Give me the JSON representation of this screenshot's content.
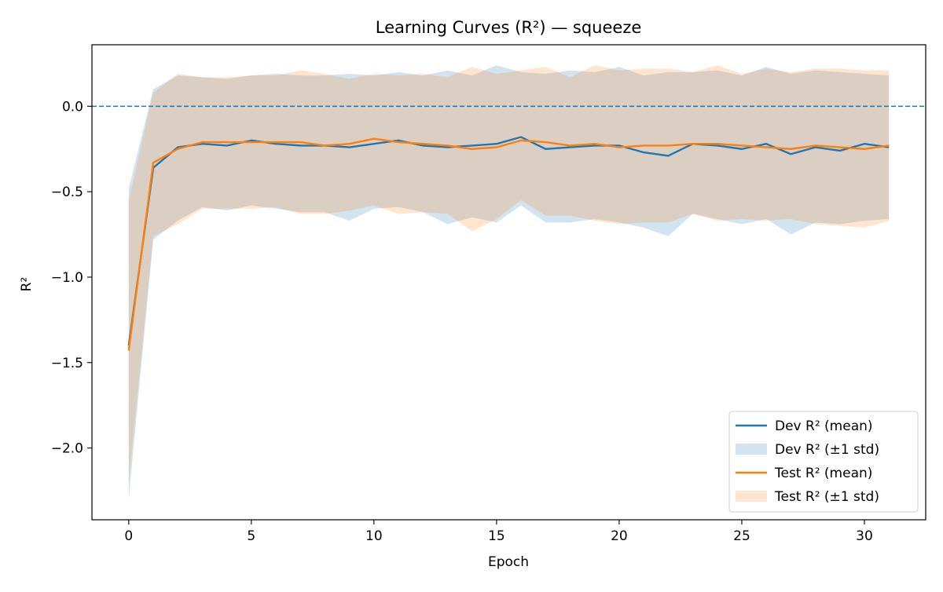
{
  "chart_data": {
    "type": "line",
    "title": "Learning Curves (R²) — squeeze",
    "xlabel": "Epoch",
    "ylabel": "R²",
    "xlim": [
      -1.5,
      32.5
    ],
    "ylim": [
      -2.42,
      0.36
    ],
    "x_ticks": [
      0,
      5,
      10,
      15,
      20,
      25,
      30
    ],
    "x_tick_labels": [
      "0",
      "5",
      "10",
      "15",
      "20",
      "25",
      "30"
    ],
    "y_ticks": [
      0.0,
      -0.5,
      -1.0,
      -1.5,
      -2.0
    ],
    "y_tick_labels": [
      "0.0",
      "−0.5",
      "−1.0",
      "−1.5",
      "−2.0"
    ],
    "reference_line": {
      "y": 0.0,
      "style": "dashed",
      "color": "#1f77b4"
    },
    "grid": false,
    "legend_position": "lower-right",
    "x": [
      0,
      1,
      2,
      3,
      4,
      5,
      6,
      7,
      8,
      9,
      10,
      11,
      12,
      13,
      14,
      15,
      16,
      17,
      18,
      19,
      20,
      21,
      22,
      23,
      24,
      25,
      26,
      27,
      28,
      29,
      30,
      31
    ],
    "series": [
      {
        "name": "Dev R² (mean)",
        "kind": "line",
        "color": "#1f77b4",
        "values": [
          -1.4,
          -0.36,
          -0.24,
          -0.22,
          -0.23,
          -0.2,
          -0.22,
          -0.23,
          -0.23,
          -0.24,
          -0.22,
          -0.2,
          -0.23,
          -0.24,
          -0.23,
          -0.22,
          -0.18,
          -0.25,
          -0.24,
          -0.23,
          -0.23,
          -0.27,
          -0.29,
          -0.22,
          -0.23,
          -0.25,
          -0.22,
          -0.28,
          -0.24,
          -0.26,
          -0.22,
          -0.24
        ]
      },
      {
        "name": "Dev R² (±1 std)",
        "kind": "band",
        "color": "#1f77b4",
        "opacity": 0.2,
        "upper": [
          -0.48,
          0.1,
          0.18,
          0.17,
          0.16,
          0.18,
          0.19,
          0.18,
          0.18,
          0.19,
          0.18,
          0.2,
          0.18,
          0.21,
          0.18,
          0.24,
          0.2,
          0.19,
          0.21,
          0.2,
          0.23,
          0.18,
          0.2,
          0.2,
          0.21,
          0.18,
          0.23,
          0.19,
          0.21,
          0.2,
          0.19,
          0.18
        ],
        "lower": [
          -2.3,
          -0.78,
          -0.67,
          -0.59,
          -0.61,
          -0.58,
          -0.6,
          -0.62,
          -0.62,
          -0.67,
          -0.6,
          -0.59,
          -0.62,
          -0.69,
          -0.65,
          -0.68,
          -0.58,
          -0.68,
          -0.68,
          -0.66,
          -0.68,
          -0.71,
          -0.76,
          -0.63,
          -0.66,
          -0.69,
          -0.66,
          -0.75,
          -0.68,
          -0.69,
          -0.67,
          -0.66
        ]
      },
      {
        "name": "Test R² (mean)",
        "kind": "line",
        "color": "#ff7f0e",
        "values": [
          -1.43,
          -0.33,
          -0.25,
          -0.21,
          -0.21,
          -0.21,
          -0.21,
          -0.21,
          -0.23,
          -0.22,
          -0.19,
          -0.21,
          -0.22,
          -0.23,
          -0.25,
          -0.24,
          -0.2,
          -0.21,
          -0.23,
          -0.22,
          -0.24,
          -0.23,
          -0.23,
          -0.22,
          -0.22,
          -0.23,
          -0.24,
          -0.25,
          -0.23,
          -0.24,
          -0.25,
          -0.23
        ]
      },
      {
        "name": "Test R² (±1 std)",
        "kind": "band",
        "color": "#ff7f0e",
        "opacity": 0.2,
        "upper": [
          -0.55,
          0.08,
          0.19,
          0.17,
          0.17,
          0.18,
          0.18,
          0.21,
          0.19,
          0.16,
          0.19,
          0.18,
          0.19,
          0.17,
          0.23,
          0.19,
          0.21,
          0.23,
          0.17,
          0.24,
          0.21,
          0.22,
          0.22,
          0.2,
          0.24,
          0.19,
          0.22,
          0.2,
          0.22,
          0.22,
          0.21,
          0.21
        ],
        "lower": [
          -2.2,
          -0.76,
          -0.69,
          -0.6,
          -0.6,
          -0.6,
          -0.59,
          -0.63,
          -0.63,
          -0.61,
          -0.58,
          -0.63,
          -0.62,
          -0.63,
          -0.73,
          -0.66,
          -0.55,
          -0.64,
          -0.64,
          -0.67,
          -0.69,
          -0.68,
          -0.68,
          -0.63,
          -0.67,
          -0.66,
          -0.67,
          -0.66,
          -0.69,
          -0.7,
          -0.71,
          -0.67
        ]
      }
    ]
  }
}
